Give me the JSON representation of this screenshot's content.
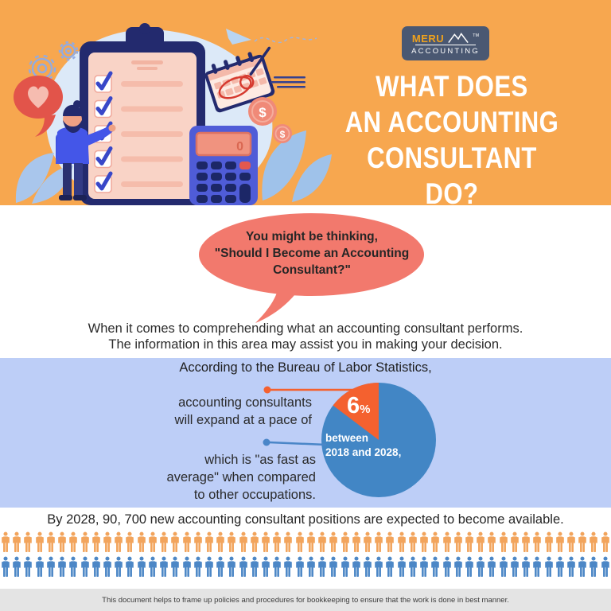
{
  "brand": {
    "name_top": "MERU",
    "name_bottom": "ACCOUNTING",
    "trademark": "TM"
  },
  "header": {
    "title_lines": [
      "WHAT DOES",
      "AN ACCOUNTING",
      "CONSULTANT DO?"
    ]
  },
  "intro": {
    "bubble_lines": [
      "You might be thinking,",
      "\"Should I Become an Accounting",
      "Consultant?\""
    ],
    "paragraph_lines": [
      "When it comes to comprehending what an accounting consultant performs.",
      "The information in this area may assist you in making your decision."
    ]
  },
  "stats": {
    "heading": "According to the Bureau of Labor Statistics,",
    "callout1_lines": [
      "accounting consultants",
      "will expand at a pace of"
    ],
    "callout2_lines": [
      "which is \"as fast as",
      "average\" when compared",
      "to other occupations."
    ],
    "pie_value": "6",
    "pie_unit": "%",
    "pie_inner_lines": [
      "between",
      "2018 and 2028,"
    ]
  },
  "availability": {
    "text": "By 2028, 90, 700 new accounting consultant positions are expected to become available."
  },
  "footer": {
    "text": "This document helps to frame up policies and procedures for bookkeeping to ensure that the work is done in best manner."
  },
  "colors": {
    "header_bg": "#f7a74f",
    "logo_bg": "#4a5872",
    "logo_accent": "#f0a21c",
    "bubble": "#f2796d",
    "stats_bg": "#bdcef7",
    "pie_blue": "#4286c5",
    "pie_orange": "#f4612f",
    "callout_orange": "#f4612f",
    "callout_blue": "#4a86c8",
    "people_orange": "#f2a45c",
    "people_blue": "#4c87c6",
    "footer_bg": "#e4e4e4"
  },
  "chart_data": [
    {
      "type": "pie",
      "title": "According to the Bureau of Labor Statistics,",
      "slices": [
        {
          "label": "between 2018 and 2028,",
          "value_label": "6%",
          "value": 6,
          "color": "#f4612f"
        },
        {
          "label": "other",
          "value": 94,
          "color": "#4286c5"
        }
      ],
      "display_fraction": 0.147,
      "annotations": [
        "accounting consultants will expand at a pace of",
        "which is \"as fast as average\" when compared to other occupations."
      ],
      "legend_position": "none"
    },
    {
      "type": "pictograph",
      "represents": "By 2028, 90, 700 new accounting consultant positions are expected to become available.",
      "rows": [
        {
          "color": "#f2a45c",
          "count": 54
        },
        {
          "color": "#4c87c6",
          "count": 54
        }
      ]
    }
  ]
}
